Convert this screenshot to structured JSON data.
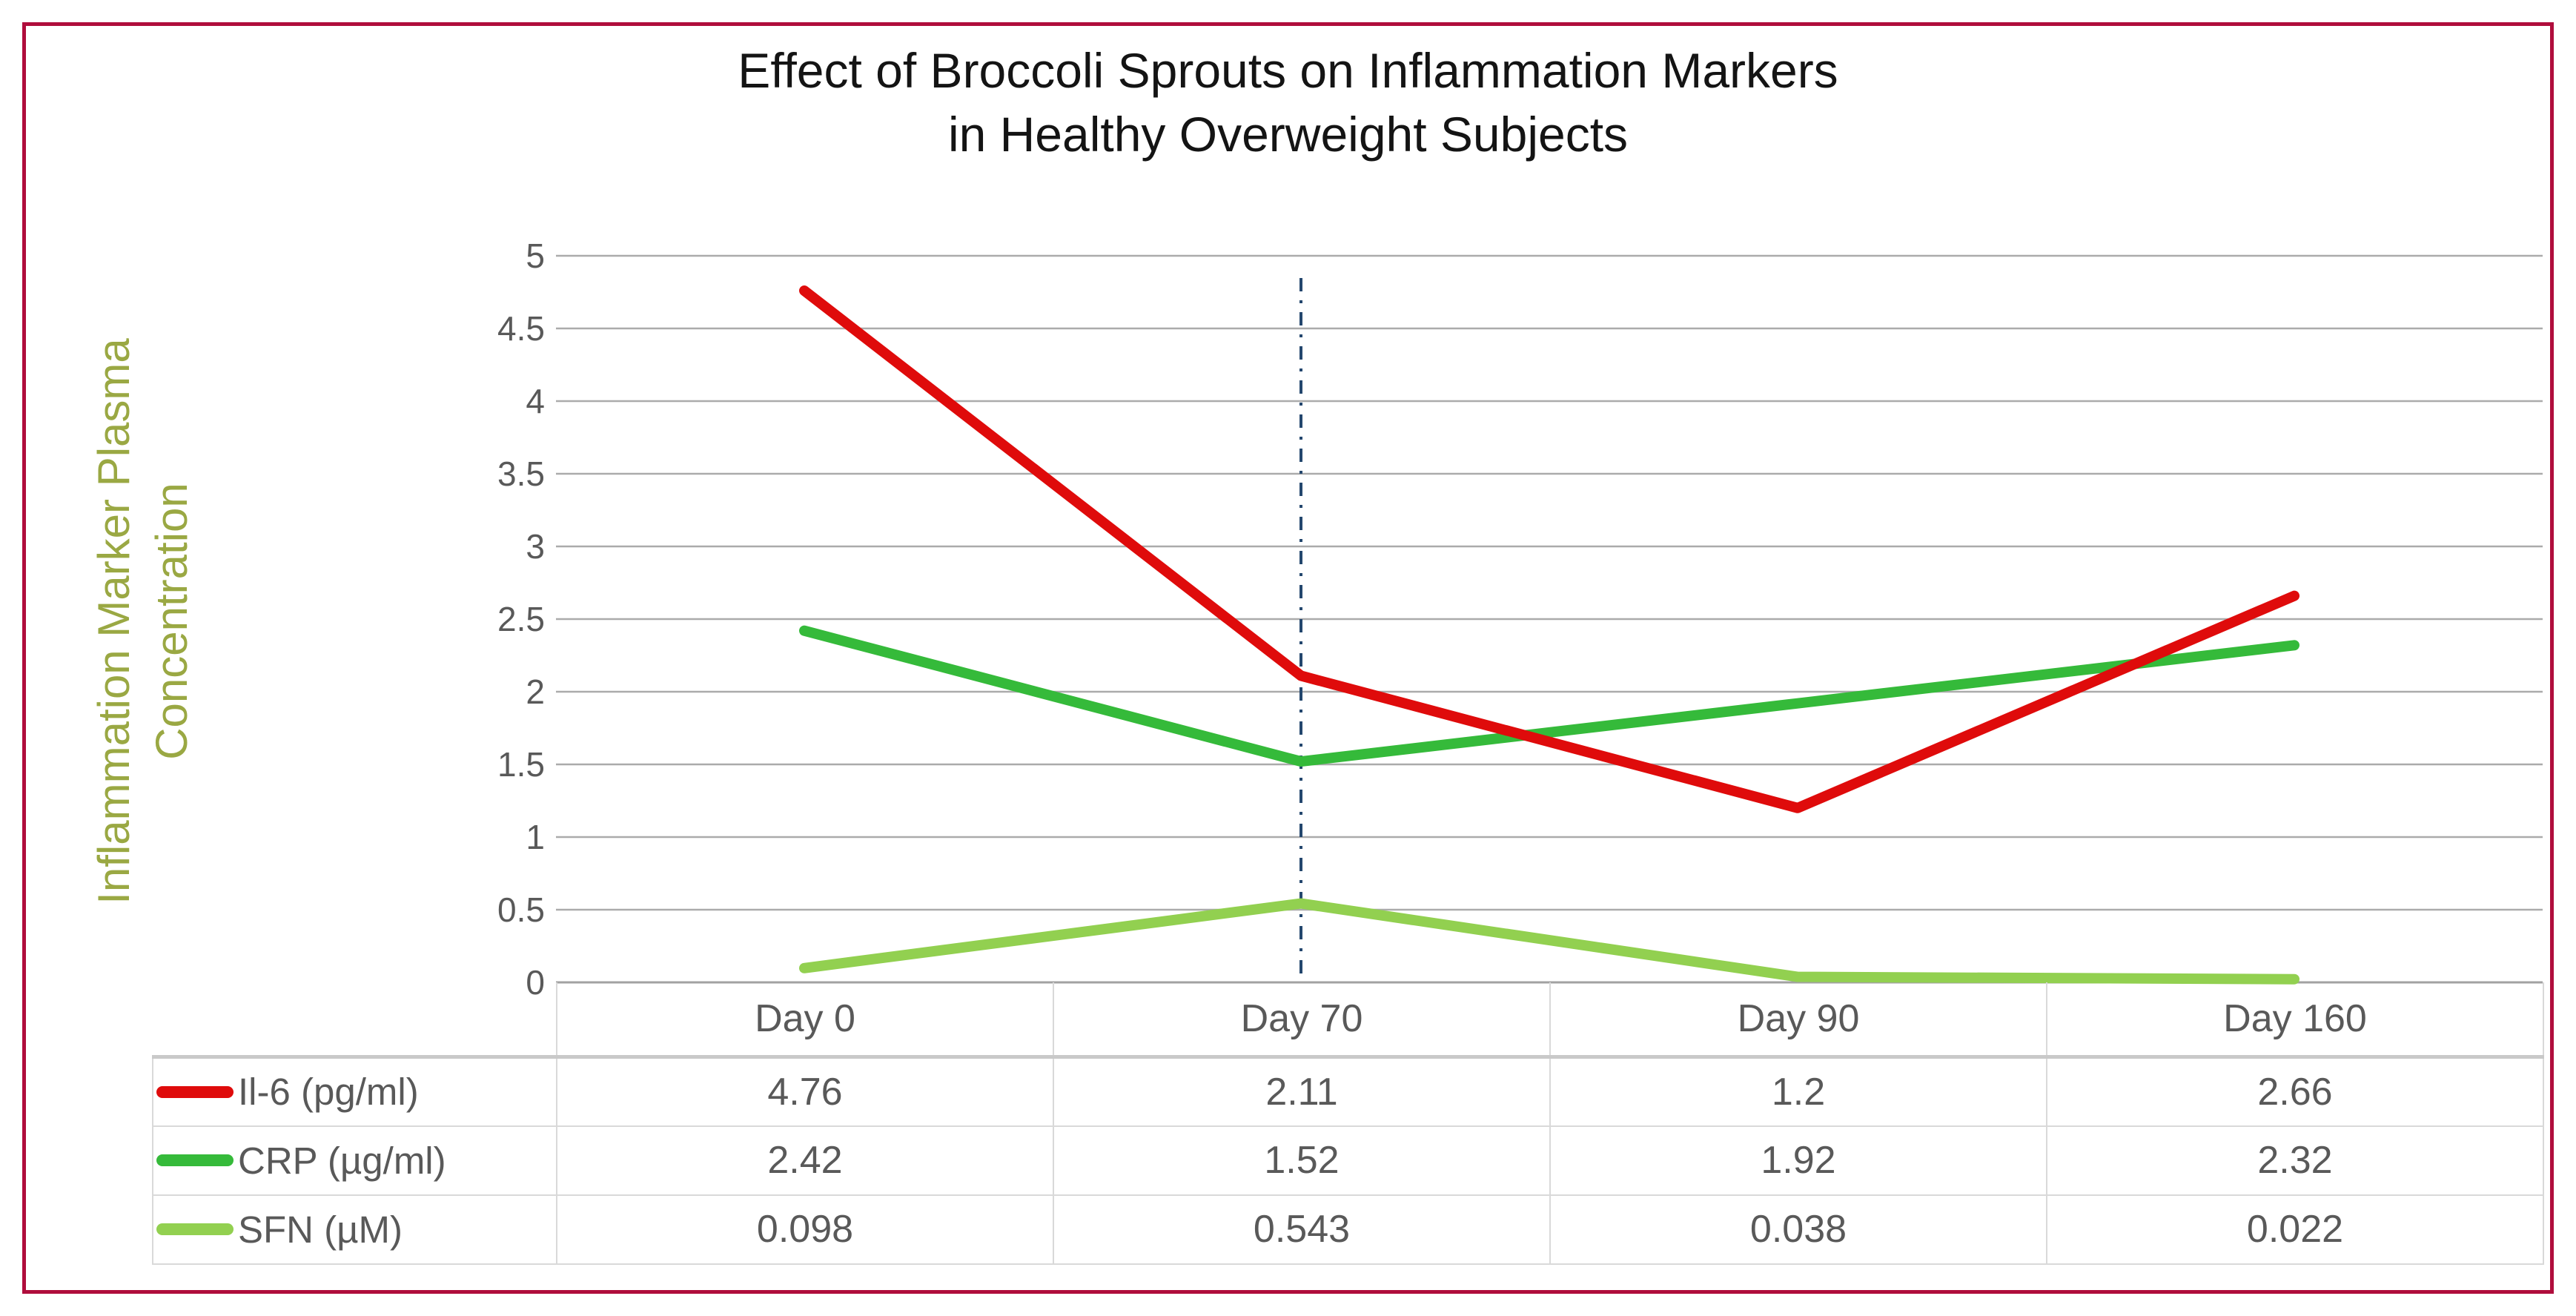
{
  "page": {
    "border_color": "#b00d3c",
    "background": "#ffffff"
  },
  "chart": {
    "title_line1": "Effect of Broccoli Sprouts on Inflammation Markers",
    "title_line2": "in Healthy Overweight Subjects",
    "y_axis_label_line1": "Inflammation Marker Plasma",
    "y_axis_label_line2": "Concentration"
  },
  "colors": {
    "page_border": "#b00d3c",
    "title_text": "#141414",
    "y_axis_title": "#9aa843",
    "axis_text": "#595959",
    "grid": "#ababab",
    "axis_line": "#a2a2a2",
    "table_border": "#d9d9d9",
    "marker_line": "#24476e"
  },
  "chart_data": {
    "type": "line",
    "title": "Effect of Broccoli Sprouts on Inflammation Markers in Healthy Overweight Subjects",
    "xlabel": "",
    "ylabel": "Inflammation Marker Plasma Concentration",
    "categories": [
      "Day 0",
      "Day 70",
      "Day 90",
      "Day 160"
    ],
    "series": [
      {
        "name": "Il-6 (pg/ml)",
        "color": "#df0b0b",
        "values": [
          4.76,
          2.11,
          1.2,
          2.66
        ]
      },
      {
        "name": "CRP (µg/ml)",
        "color": "#35ba3a",
        "values": [
          2.42,
          1.52,
          1.92,
          2.32
        ]
      },
      {
        "name": "SFN (µM)",
        "color": "#92d050",
        "values": [
          0.098,
          0.543,
          0.038,
          0.022
        ]
      }
    ],
    "ylim": [
      0,
      5
    ],
    "ytick_step": 0.5,
    "grid": true,
    "legend_position": "table-row-labels",
    "z_draw_order": [
      1,
      2,
      0
    ],
    "annotations": [
      {
        "type": "vline",
        "at_category": "Day 70",
        "color": "#24476e",
        "style": "dash-dot"
      }
    ]
  }
}
